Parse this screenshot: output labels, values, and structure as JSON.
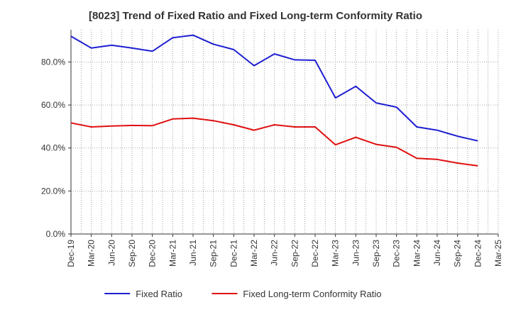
{
  "chart_data": {
    "type": "line",
    "title": "[8023]  Trend of Fixed Ratio and Fixed Long-term Conformity Ratio",
    "xlabel": "",
    "ylabel": "",
    "categories": [
      "Dec-19",
      "Mar-20",
      "Jun-20",
      "Sep-20",
      "Dec-20",
      "Mar-21",
      "Jun-21",
      "Sep-21",
      "Dec-21",
      "Mar-22",
      "Jun-22",
      "Sep-22",
      "Dec-22",
      "Mar-23",
      "Jun-23",
      "Sep-23",
      "Dec-23",
      "Mar-24",
      "Jun-24",
      "Sep-24",
      "Dec-24",
      "Mar-25"
    ],
    "ylim": [
      0,
      95
    ],
    "yticks": [
      0,
      20,
      40,
      60,
      80
    ],
    "ytick_labels": [
      "0.0%",
      "20.0%",
      "40.0%",
      "60.0%",
      "80.0%"
    ],
    "grid": true,
    "legend_position": "bottom",
    "series": [
      {
        "name": "Fixed Ratio",
        "color": "#1f1fd2",
        "values": [
          92.0,
          86.5,
          87.8,
          86.5,
          85.0,
          91.3,
          92.5,
          88.3,
          85.8,
          78.3,
          83.8,
          81.0,
          80.8,
          63.3,
          68.7,
          61.0,
          59.0,
          49.8,
          48.3,
          45.5,
          43.3,
          null
        ]
      },
      {
        "name": "Fixed Long-term Conformity Ratio",
        "color": "#e01010",
        "values": [
          51.7,
          49.8,
          50.2,
          50.5,
          50.4,
          53.5,
          53.9,
          52.7,
          50.8,
          48.3,
          50.8,
          49.8,
          49.8,
          41.5,
          45.0,
          41.7,
          40.3,
          35.2,
          34.7,
          33.0,
          31.7,
          null
        ]
      }
    ]
  }
}
